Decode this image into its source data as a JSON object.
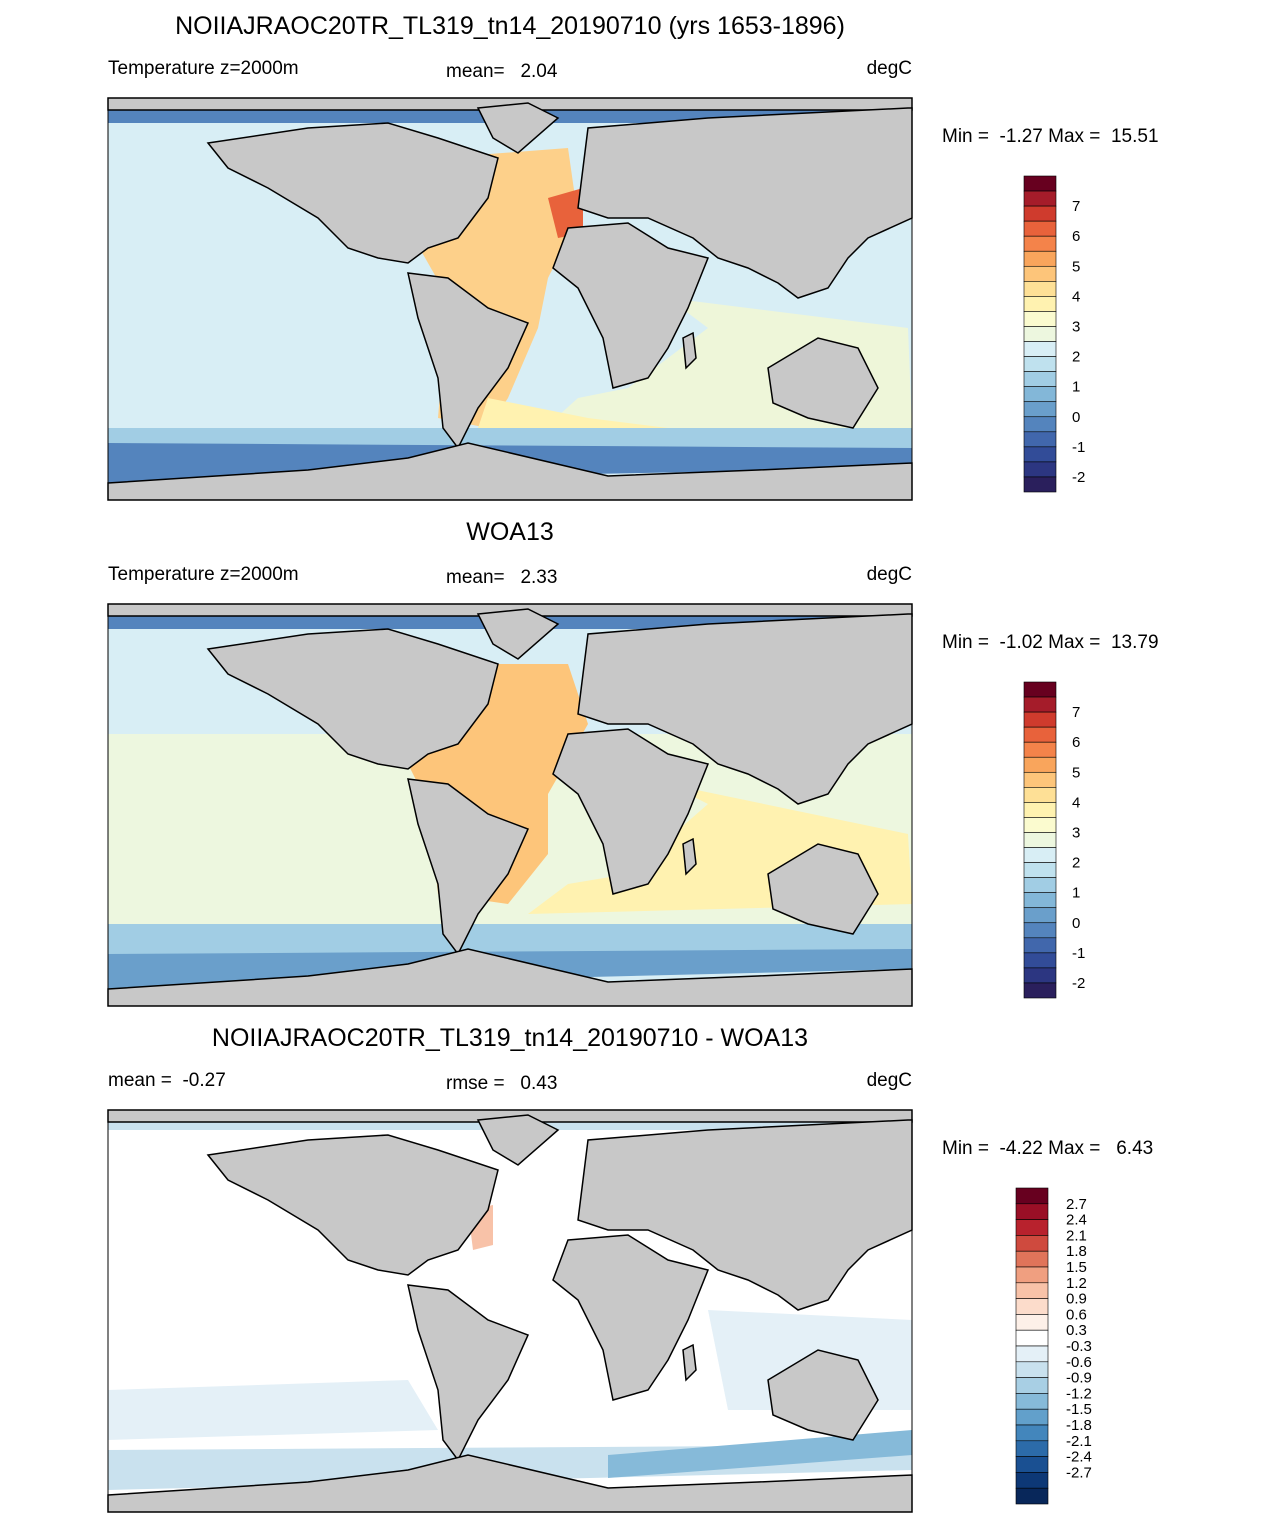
{
  "panels": [
    {
      "title": "NOIIAJRAOC20TR_TL319_tn14_20190710 (yrs 1653-1896)",
      "left_label": "Temperature z=2000m",
      "center_label": "mean=   2.04",
      "units": "degC",
      "range_label": "Min =  -1.27 Max =  15.51",
      "colorbar_labels": [
        "7",
        "6",
        "5",
        "4",
        "3",
        "2",
        "1",
        "0",
        "-1",
        "-2"
      ]
    },
    {
      "title": "WOA13",
      "left_label": "Temperature z=2000m",
      "center_label": "mean=   2.33",
      "units": "degC",
      "range_label": "Min =  -1.02 Max =  13.79",
      "colorbar_labels": [
        "7",
        "6",
        "5",
        "4",
        "3",
        "2",
        "1",
        "0",
        "-1",
        "-2"
      ]
    },
    {
      "title": "NOIIAJRAOC20TR_TL319_tn14_20190710 - WOA13",
      "left_label": "mean =  -0.27",
      "center_label": "rmse =   0.43",
      "units": "degC",
      "range_label": "Min =  -4.22 Max =   6.43",
      "colorbar_labels": [
        "2.7",
        "2.4",
        "2.1",
        "1.8",
        "1.5",
        "1.2",
        "0.9",
        "0.6",
        "0.3",
        "-0.3",
        "-0.6",
        "-0.9",
        "-1.2",
        "-1.5",
        "-1.8",
        "-2.1",
        "-2.4",
        "-2.7"
      ]
    }
  ]
}
